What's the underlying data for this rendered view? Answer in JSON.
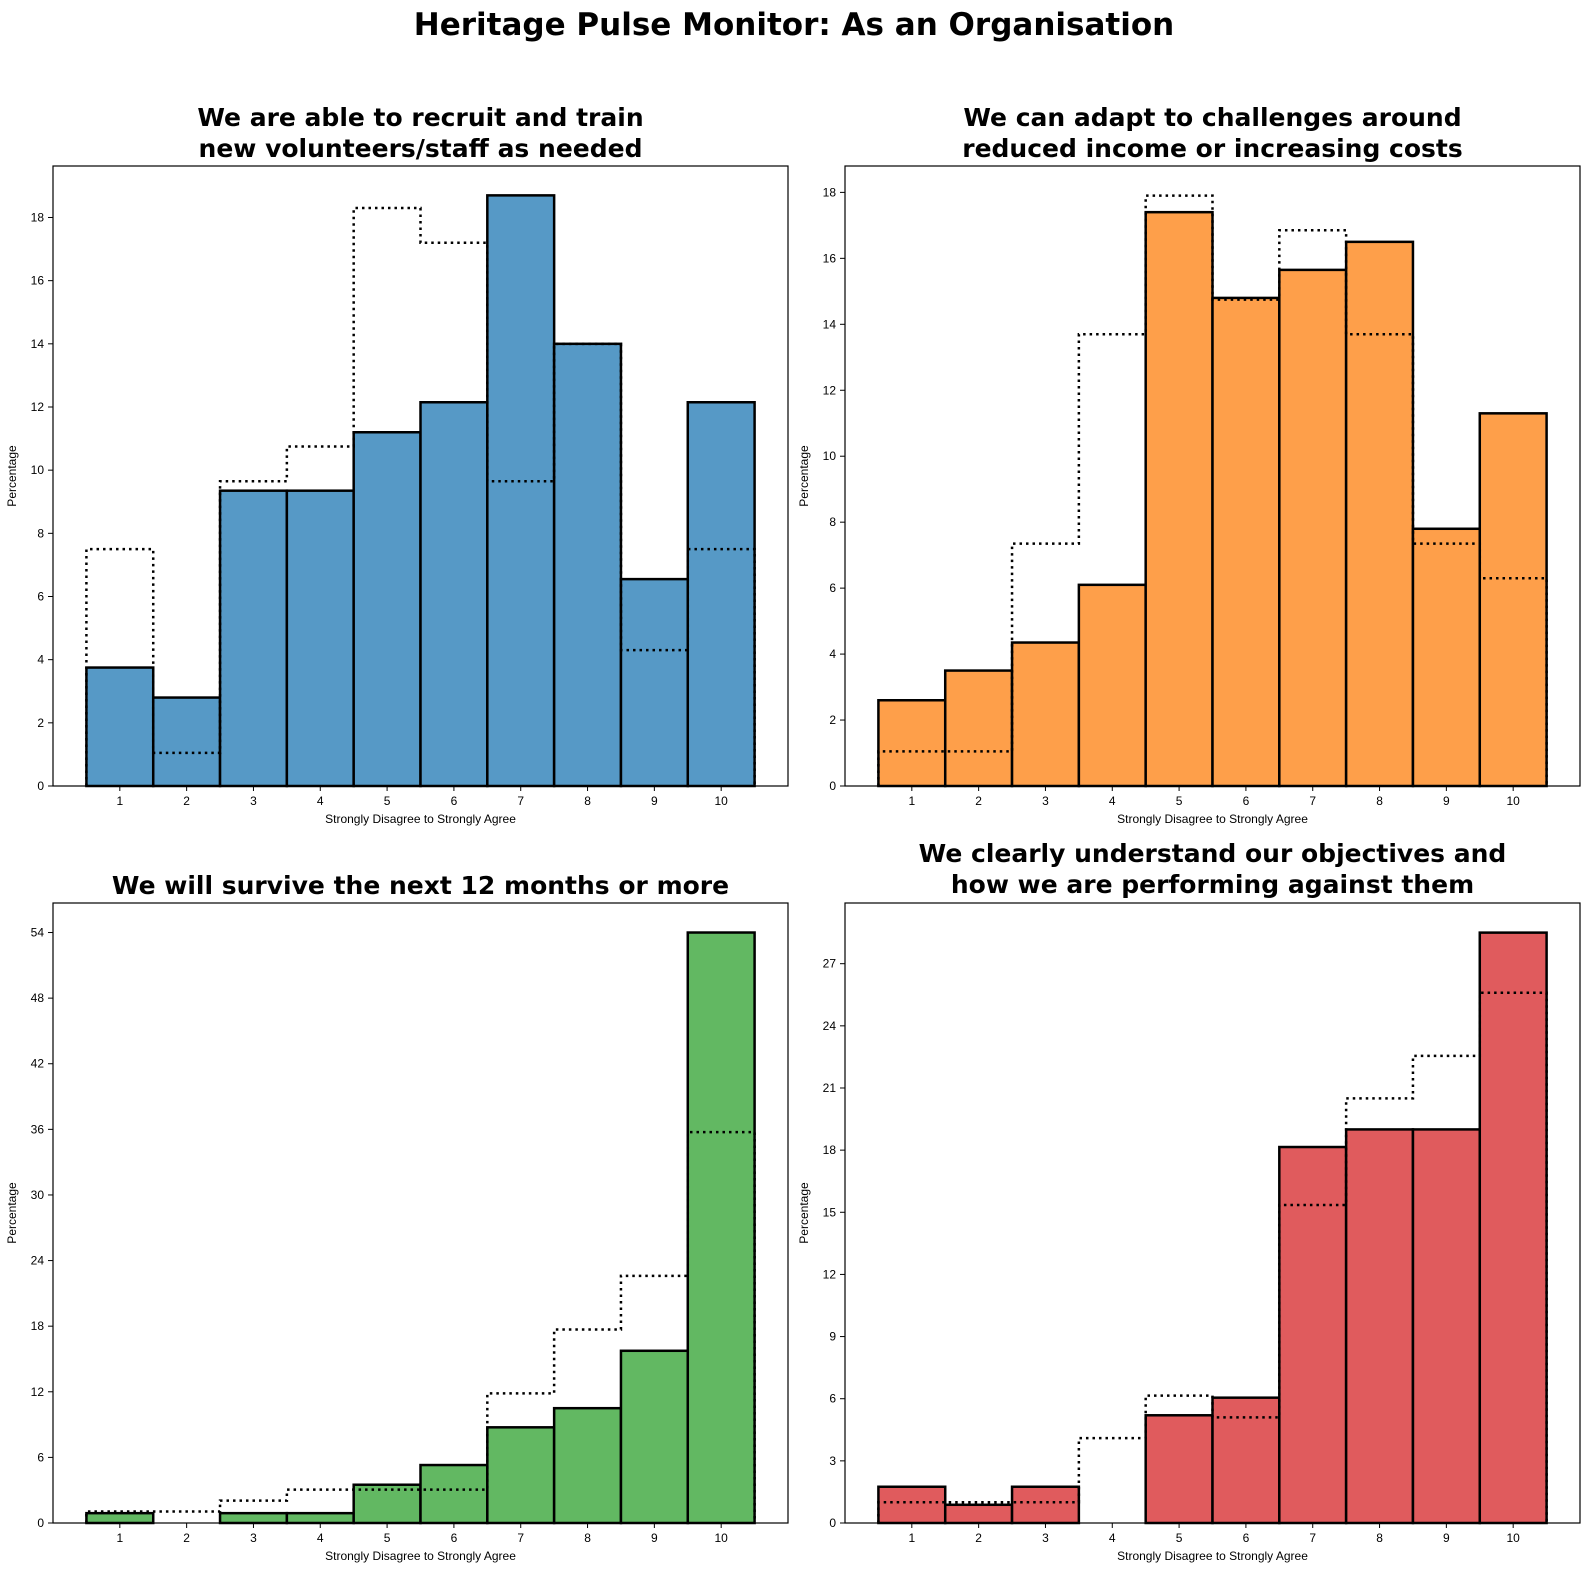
{
  "suptitle": "Heritage Pulse Monitor: As an Organisation",
  "chart_data": [
    {
      "type": "bar",
      "title_lines": [
        "We are able to recruit and train",
        "new volunteers/staff as needed"
      ],
      "xlabel": "Strongly Disagree to Strongly Agree",
      "ylabel": "Percentage",
      "categories": [
        "1",
        "2",
        "3",
        "4",
        "5",
        "6",
        "7",
        "8",
        "9",
        "10"
      ],
      "values": [
        3.75,
        2.8,
        9.35,
        9.35,
        11.2,
        12.15,
        18.7,
        14.0,
        6.55,
        12.15
      ],
      "comparison_values": [
        7.5,
        1.05,
        9.65,
        10.75,
        18.3,
        17.2,
        9.65,
        14.0,
        4.3,
        7.5
      ],
      "ylim": [
        0,
        19.63
      ],
      "yticks": [
        0,
        2,
        4,
        6,
        8,
        10,
        12,
        14,
        16,
        18
      ],
      "color": "#5699c6",
      "grid": false
    },
    {
      "type": "bar",
      "title_lines": [
        "We can adapt to challenges around",
        "reduced income or increasing costs"
      ],
      "xlabel": "Strongly Disagree to Strongly Agree",
      "ylabel": "Percentage",
      "categories": [
        "1",
        "2",
        "3",
        "4",
        "5",
        "6",
        "7",
        "8",
        "9",
        "10"
      ],
      "values": [
        2.6,
        3.5,
        4.35,
        6.1,
        17.4,
        14.8,
        15.65,
        16.5,
        7.8,
        11.3
      ],
      "comparison_values": [
        1.05,
        1.05,
        7.35,
        13.7,
        17.9,
        14.75,
        16.85,
        13.7,
        7.35,
        6.3
      ],
      "ylim": [
        0,
        18.8
      ],
      "yticks": [
        0,
        2,
        4,
        6,
        8,
        10,
        12,
        14,
        16,
        18
      ],
      "color": "#fe9f4a",
      "grid": false
    },
    {
      "type": "bar",
      "title_lines": [
        "We will survive the next 12 months or more"
      ],
      "xlabel": "Strongly Disagree to Strongly Agree",
      "ylabel": "Percentage",
      "categories": [
        "1",
        "2",
        "3",
        "4",
        "5",
        "6",
        "7",
        "8",
        "9",
        "10"
      ],
      "values": [
        0.9,
        0.0,
        0.9,
        0.9,
        3.5,
        5.3,
        8.75,
        10.5,
        15.75,
        54.0
      ],
      "comparison_values": [
        1.05,
        1.05,
        2.05,
        3.05,
        3.05,
        3.05,
        11.85,
        17.7,
        22.6,
        35.75
      ],
      "ylim": [
        0,
        56.7
      ],
      "yticks": [
        0,
        6,
        12,
        18,
        24,
        30,
        36,
        42,
        48,
        54
      ],
      "color": "#62b862",
      "grid": false
    },
    {
      "type": "bar",
      "title_lines": [
        "We clearly understand our objectives and",
        "how we are performing against them"
      ],
      "xlabel": "Strongly Disagree to Strongly Agree",
      "ylabel": "Percentage",
      "categories": [
        "1",
        "2",
        "3",
        "4",
        "5",
        "6",
        "7",
        "8",
        "9",
        "10"
      ],
      "values": [
        1.75,
        0.88,
        1.75,
        0.0,
        5.2,
        6.05,
        18.15,
        19.0,
        19.0,
        28.5
      ],
      "comparison_values": [
        1.0,
        1.0,
        1.0,
        4.1,
        6.15,
        5.1,
        15.35,
        20.5,
        22.55,
        25.6
      ],
      "ylim": [
        0,
        29.93
      ],
      "yticks": [
        0,
        3,
        6,
        9,
        12,
        15,
        18,
        21,
        24,
        27
      ],
      "color": "#e05b5d",
      "grid": false
    }
  ]
}
